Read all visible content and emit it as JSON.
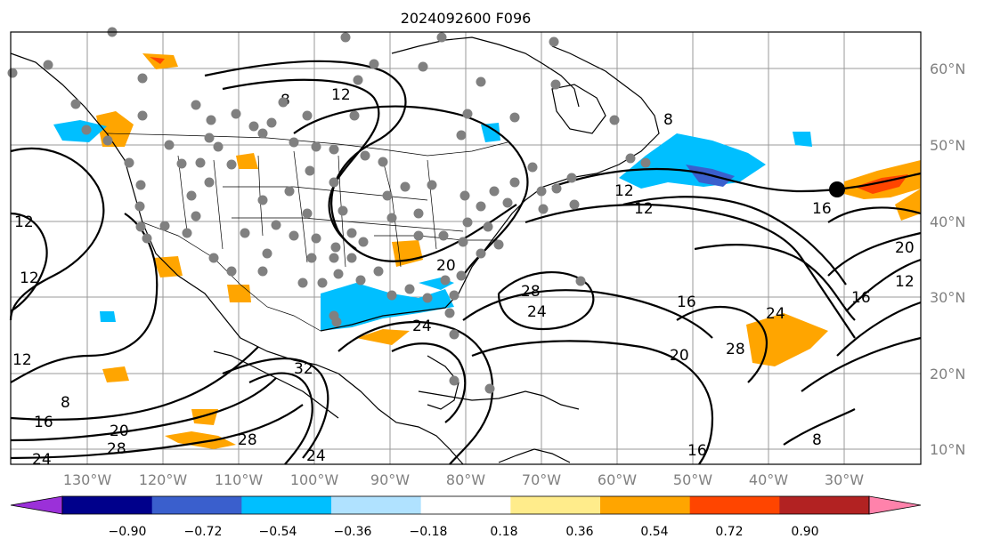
{
  "title": "2024092600 F096",
  "lat_labels": [
    "60°N",
    "50°N",
    "40°N",
    "30°N",
    "20°N",
    "10°N"
  ],
  "lon_labels": [
    "130°W",
    "120°W",
    "110°W",
    "100°W",
    "90°W",
    "80°W",
    "70°W",
    "60°W",
    "50°W",
    "40°W",
    "30°W"
  ],
  "contour_labels": [
    "8",
    "12",
    "12",
    "12",
    "8",
    "12",
    "16",
    "12",
    "20",
    "28",
    "24",
    "24",
    "32",
    "28",
    "20",
    "8",
    "16",
    "28",
    "12",
    "16",
    "20",
    "24",
    "28",
    "16",
    "12",
    "20",
    "24",
    "24",
    "16",
    "8"
  ],
  "colorbar": {
    "ticks": [
      "−0.90",
      "−0.72",
      "−0.54",
      "−0.36",
      "−0.18",
      "0.18",
      "0.36",
      "0.54",
      "0.72",
      "0.90"
    ],
    "colors": [
      "#9b30d9",
      "#00008b",
      "#3a5fcd",
      "#00bfff",
      "#b0e2ff",
      "#ffffff",
      "#ffec8b",
      "#ffa500",
      "#ff4500",
      "#b22222",
      "#ff82ab"
    ]
  },
  "colors": {
    "grid": "#9a9a9a",
    "station": "#808080",
    "land_text": "#808080"
  }
}
